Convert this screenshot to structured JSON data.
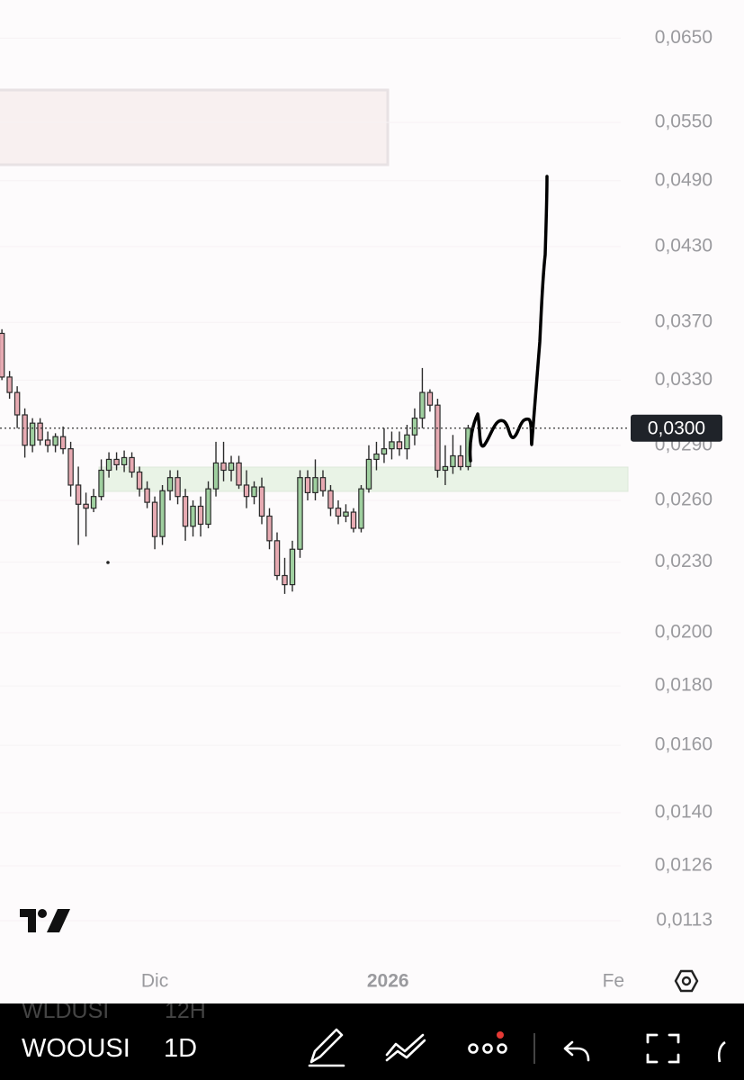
{
  "chart_data": {
    "type": "candlestick",
    "log_scale": true,
    "ylim": [
      0.0103,
      0.0701
    ],
    "yticks": [
      {
        "value": 0.065,
        "label": "0,0650"
      },
      {
        "value": 0.055,
        "label": "0,0550"
      },
      {
        "value": 0.049,
        "label": "0,0490"
      },
      {
        "value": 0.043,
        "label": "0,0430"
      },
      {
        "value": 0.037,
        "label": "0,0370"
      },
      {
        "value": 0.033,
        "label": "0,0330"
      },
      {
        "value": 0.029,
        "label": "0,0290"
      },
      {
        "value": 0.026,
        "label": "0,0260"
      },
      {
        "value": 0.023,
        "label": "0,0230"
      },
      {
        "value": 0.02,
        "label": "0,0200"
      },
      {
        "value": 0.018,
        "label": "0,0180"
      },
      {
        "value": 0.016,
        "label": "0,0160"
      },
      {
        "value": 0.014,
        "label": "0,0140"
      },
      {
        "value": 0.0126,
        "label": "0,0126"
      },
      {
        "value": 0.0113,
        "label": "0,0113"
      }
    ],
    "xlim": [
      -0.25,
      81.9
    ],
    "xticks": [
      {
        "value": 20,
        "label": "Dic"
      },
      {
        "value": 50.5,
        "label": "2026"
      },
      {
        "value": 80,
        "label": "Fe"
      }
    ],
    "up_color": "#9fcf9f",
    "down_color": "#e7aab2",
    "open": [
      0.0362,
      0.0332,
      0.0322,
      0.0308,
      0.029,
      0.0303,
      0.0293,
      0.029,
      0.0295,
      0.0288,
      0.0268,
      0.0258,
      0.0256,
      0.0262,
      0.0276,
      0.0282,
      0.0279,
      0.0283,
      0.0275,
      0.0266,
      0.0259,
      0.0242,
      0.0265,
      0.0272,
      0.0262,
      0.0247,
      0.0257,
      0.0248,
      0.0266,
      0.028,
      0.0276,
      0.028,
      0.0268,
      0.0262,
      0.0267,
      0.0252,
      0.024,
      0.0224,
      0.022,
      0.0236,
      0.0272,
      0.0264,
      0.0272,
      0.0265,
      0.0256,
      0.0252,
      0.0254,
      0.0246,
      0.0266,
      0.0282,
      0.0285,
      0.0288,
      0.0292,
      0.0288,
      0.0296,
      0.0306,
      0.0322,
      0.0314,
      0.0276,
      0.0278,
      0.0284,
      0.0278
    ],
    "high": [
      0.0365,
      0.0336,
      0.0326,
      0.0312,
      0.0306,
      0.0306,
      0.0298,
      0.0297,
      0.0301,
      0.0292,
      0.0278,
      0.0264,
      0.0266,
      0.0282,
      0.0286,
      0.0286,
      0.0287,
      0.0286,
      0.0278,
      0.027,
      0.0262,
      0.0268,
      0.0276,
      0.0276,
      0.0266,
      0.026,
      0.0262,
      0.027,
      0.0292,
      0.0292,
      0.0284,
      0.0284,
      0.0276,
      0.027,
      0.0272,
      0.0256,
      0.0244,
      0.0232,
      0.024,
      0.0276,
      0.0276,
      0.0282,
      0.0276,
      0.0268,
      0.026,
      0.0258,
      0.0256,
      0.0268,
      0.029,
      0.0292,
      0.03,
      0.0298,
      0.0298,
      0.0302,
      0.0312,
      0.0338,
      0.0324,
      0.0318,
      0.029,
      0.0296,
      0.029,
      0.0302
    ],
    "low": [
      0.033,
      0.0318,
      0.03,
      0.0283,
      0.0286,
      0.029,
      0.0286,
      0.0286,
      0.0285,
      0.0262,
      0.0238,
      0.0242,
      0.0254,
      0.026,
      0.0272,
      0.0276,
      0.0275,
      0.0272,
      0.0262,
      0.0256,
      0.0236,
      0.0238,
      0.026,
      0.0258,
      0.024,
      0.0242,
      0.0242,
      0.0246,
      0.0262,
      0.027,
      0.027,
      0.0266,
      0.0256,
      0.0258,
      0.0248,
      0.0236,
      0.0222,
      0.0216,
      0.0217,
      0.0232,
      0.026,
      0.026,
      0.0262,
      0.0252,
      0.0248,
      0.0249,
      0.0244,
      0.0244,
      0.0264,
      0.0276,
      0.028,
      0.0282,
      0.0284,
      0.0282,
      0.029,
      0.03,
      0.031,
      0.0272,
      0.0268,
      0.0274,
      0.0276,
      0.0276
    ],
    "close": [
      0.0332,
      0.0322,
      0.0308,
      0.029,
      0.0303,
      0.0293,
      0.029,
      0.0295,
      0.0288,
      0.0268,
      0.0258,
      0.0256,
      0.0262,
      0.0276,
      0.0282,
      0.0279,
      0.0283,
      0.0275,
      0.0266,
      0.0259,
      0.0242,
      0.0265,
      0.0272,
      0.0262,
      0.0247,
      0.0257,
      0.0248,
      0.0266,
      0.028,
      0.0276,
      0.028,
      0.0268,
      0.0262,
      0.0267,
      0.0252,
      0.024,
      0.0224,
      0.022,
      0.0236,
      0.0272,
      0.0264,
      0.0272,
      0.0265,
      0.0256,
      0.0252,
      0.0254,
      0.0246,
      0.0266,
      0.0282,
      0.0285,
      0.0288,
      0.0292,
      0.0288,
      0.0296,
      0.0306,
      0.0322,
      0.0314,
      0.0276,
      0.0278,
      0.0284,
      0.0278,
      0.03
    ],
    "last_price": {
      "value": 0.03,
      "label": "0,0300"
    }
  },
  "toolbar": {
    "prev_symbol": "WLDUSI",
    "prev_interval": "12H",
    "symbol": "WOOUSI",
    "interval": "1D"
  }
}
